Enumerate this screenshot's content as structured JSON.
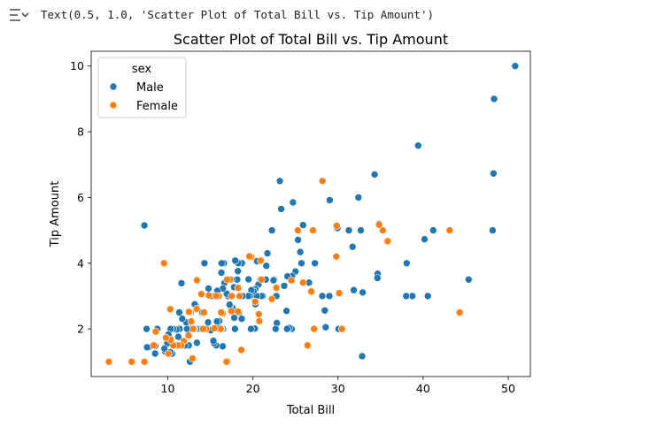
{
  "cell_output": {
    "text": "Text(0.5, 1.0, 'Scatter Plot of Total Bill vs. Tip Amount')",
    "icon": "output-collapse-icon"
  },
  "chart_data": {
    "type": "scatter",
    "title": "Scatter Plot of Total Bill vs. Tip Amount",
    "xlabel": "Total Bill",
    "ylabel": "Tip Amount",
    "xlim": [
      1.0,
      52.6
    ],
    "ylim": [
      0.55,
      10.45
    ],
    "xticks": [
      10,
      20,
      30,
      40,
      50
    ],
    "yticks": [
      2,
      4,
      6,
      8,
      10
    ],
    "grid": false,
    "legend": {
      "title": "sex",
      "position": "upper-left"
    },
    "series": [
      {
        "name": "Male",
        "color": "#1f77b4",
        "points": [
          [
            50.81,
            10.0
          ],
          [
            48.33,
            9.0
          ],
          [
            48.27,
            6.73
          ],
          [
            48.17,
            5.0
          ],
          [
            45.35,
            3.5
          ],
          [
            41.19,
            5.0
          ],
          [
            40.55,
            3.0
          ],
          [
            40.17,
            4.73
          ],
          [
            39.42,
            7.58
          ],
          [
            38.73,
            3.0
          ],
          [
            38.07,
            4.0
          ],
          [
            38.01,
            3.0
          ],
          [
            34.81,
            5.2
          ],
          [
            34.65,
            3.68
          ],
          [
            34.63,
            3.55
          ],
          [
            34.3,
            6.7
          ],
          [
            32.83,
            1.17
          ],
          [
            32.68,
            5.0
          ],
          [
            32.4,
            6.0
          ],
          [
            32.9,
            3.11
          ],
          [
            31.85,
            3.18
          ],
          [
            31.71,
            4.5
          ],
          [
            31.27,
            5.0
          ],
          [
            30.4,
            2.0
          ],
          [
            30.06,
            2.0
          ],
          [
            29.93,
            5.07
          ],
          [
            29.85,
            5.14
          ],
          [
            29.03,
            5.92
          ],
          [
            28.97,
            3.0
          ],
          [
            28.55,
            2.05
          ],
          [
            28.44,
            2.56
          ],
          [
            28.15,
            3.0
          ],
          [
            27.28,
            4.0
          ],
          [
            26.88,
            3.12
          ],
          [
            26.86,
            3.14
          ],
          [
            26.59,
            3.41
          ],
          [
            25.89,
            5.16
          ],
          [
            25.71,
            4.0
          ],
          [
            25.56,
            4.34
          ],
          [
            25.29,
            4.71
          ],
          [
            25.0,
            3.75
          ],
          [
            24.71,
            5.85
          ],
          [
            24.59,
            3.61
          ],
          [
            24.55,
            2.0
          ],
          [
            24.27,
            2.03
          ],
          [
            24.06,
            3.6
          ],
          [
            24.01,
            2.0
          ],
          [
            23.95,
            2.55
          ],
          [
            23.68,
            3.31
          ],
          [
            23.33,
            5.65
          ],
          [
            23.17,
            6.5
          ],
          [
            22.82,
            2.18
          ],
          [
            22.76,
            3.0
          ],
          [
            22.67,
            2.0
          ],
          [
            22.49,
            3.5
          ],
          [
            22.42,
            3.48
          ],
          [
            22.23,
            5.0
          ],
          [
            21.7,
            4.3
          ],
          [
            21.58,
            3.92
          ],
          [
            21.5,
            3.5
          ],
          [
            21.16,
            3.0
          ],
          [
            21.01,
            3.0
          ],
          [
            20.92,
            4.08
          ],
          [
            20.9,
            3.5
          ],
          [
            20.69,
            2.45
          ],
          [
            20.65,
            3.35
          ],
          [
            20.49,
            4.06
          ],
          [
            20.45,
            3.0
          ],
          [
            20.29,
            2.75
          ],
          [
            20.29,
            3.21
          ],
          [
            20.27,
            2.83
          ],
          [
            20.23,
            2.01
          ],
          [
            20.08,
            3.15
          ],
          [
            19.82,
            3.18
          ],
          [
            19.81,
            4.19
          ],
          [
            19.77,
            2.0
          ],
          [
            19.65,
            3.0
          ],
          [
            19.49,
            3.51
          ],
          [
            19.44,
            3.0
          ],
          [
            18.78,
            3.0
          ],
          [
            18.71,
            4.0
          ],
          [
            18.69,
            2.31
          ],
          [
            18.35,
            2.5
          ],
          [
            18.29,
            3.76
          ],
          [
            18.28,
            4.0
          ],
          [
            18.24,
            3.76
          ],
          [
            18.15,
            3.5
          ],
          [
            17.92,
            4.08
          ],
          [
            17.89,
            2.0
          ],
          [
            17.81,
            2.34
          ],
          [
            17.78,
            3.27
          ],
          [
            17.59,
            2.64
          ],
          [
            17.47,
            3.5
          ],
          [
            17.46,
            2.54
          ],
          [
            17.29,
            2.71
          ],
          [
            17.26,
            2.74
          ],
          [
            17.07,
            3.0
          ],
          [
            16.99,
            1.01
          ],
          [
            16.93,
            3.07
          ],
          [
            16.66,
            3.4
          ],
          [
            16.58,
            4.0
          ],
          [
            16.49,
            2.0
          ],
          [
            16.47,
            3.23
          ],
          [
            16.45,
            1.47
          ],
          [
            16.4,
            2.5
          ],
          [
            16.32,
            4.0
          ],
          [
            16.31,
            2.0
          ],
          [
            16.29,
            3.71
          ],
          [
            16.21,
            2.0
          ],
          [
            16.04,
            2.24
          ],
          [
            16.0,
            2.0
          ],
          [
            15.98,
            2.03
          ],
          [
            15.81,
            3.16
          ],
          [
            15.77,
            2.23
          ],
          [
            15.69,
            1.5
          ],
          [
            15.53,
            3.0
          ],
          [
            15.48,
            2.02
          ],
          [
            15.42,
            1.57
          ],
          [
            15.38,
            3.0
          ],
          [
            15.36,
            1.64
          ],
          [
            15.06,
            3.0
          ],
          [
            15.04,
            1.96
          ],
          [
            14.83,
            3.02
          ],
          [
            14.78,
            3.23
          ],
          [
            14.73,
            2.2
          ],
          [
            14.48,
            2.0
          ],
          [
            14.31,
            4.0
          ],
          [
            14.26,
            2.5
          ],
          [
            14.15,
            2.0
          ],
          [
            14.07,
            2.5
          ],
          [
            13.94,
            3.06
          ],
          [
            13.81,
            2.0
          ],
          [
            13.51,
            2.0
          ],
          [
            13.42,
            1.58
          ],
          [
            13.37,
            2.0
          ],
          [
            13.28,
            2.72
          ],
          [
            13.16,
            2.75
          ],
          [
            13.13,
            2.0
          ],
          [
            13.03,
            2.0
          ],
          [
            13.0,
            2.0
          ],
          [
            12.74,
            2.01
          ],
          [
            12.69,
            2.0
          ],
          [
            12.66,
            2.5
          ],
          [
            12.6,
            1.0
          ],
          [
            12.46,
            1.5
          ],
          [
            12.43,
            1.8
          ],
          [
            12.26,
            2.0
          ],
          [
            12.16,
            2.2
          ],
          [
            12.03,
            1.5
          ],
          [
            11.87,
            1.63
          ],
          [
            11.69,
            2.31
          ],
          [
            11.61,
            3.39
          ],
          [
            11.59,
            1.5
          ],
          [
            11.38,
            2.0
          ],
          [
            11.35,
            2.5
          ],
          [
            11.24,
            1.76
          ],
          [
            11.02,
            1.98
          ],
          [
            10.65,
            1.5
          ],
          [
            10.63,
            2.0
          ],
          [
            10.51,
            1.25
          ],
          [
            10.34,
            2.0
          ],
          [
            10.33,
            2.0
          ],
          [
            10.29,
            1.29
          ],
          [
            10.27,
            1.71
          ],
          [
            10.07,
            1.83
          ],
          [
            9.94,
            1.56
          ],
          [
            9.78,
            1.73
          ],
          [
            9.68,
            1.32
          ],
          [
            9.6,
            1.4
          ],
          [
            8.77,
            2.0
          ],
          [
            8.52,
            1.48
          ],
          [
            8.51,
            1.25
          ],
          [
            7.74,
            1.44
          ],
          [
            7.51,
            2.0
          ],
          [
            7.25,
            5.15
          ],
          [
            7.56,
            1.44
          ]
        ]
      },
      {
        "name": "Female",
        "color": "#ff7f0e",
        "points": [
          [
            44.3,
            2.5
          ],
          [
            43.11,
            5.0
          ],
          [
            35.83,
            4.67
          ],
          [
            35.26,
            5.0
          ],
          [
            34.83,
            5.17
          ],
          [
            30.46,
            2.0
          ],
          [
            30.14,
            3.09
          ],
          [
            29.85,
            5.14
          ],
          [
            29.8,
            4.2
          ],
          [
            28.17,
            6.5
          ],
          [
            27.18,
            2.0
          ],
          [
            27.05,
            5.0
          ],
          [
            26.41,
            1.5
          ],
          [
            26.86,
            3.14
          ],
          [
            25.89,
            3.41
          ],
          [
            25.28,
            5.0
          ],
          [
            24.52,
            3.48
          ],
          [
            22.75,
            3.25
          ],
          [
            22.23,
            2.91
          ],
          [
            21.01,
            3.5
          ],
          [
            20.92,
            4.08
          ],
          [
            20.76,
            2.24
          ],
          [
            20.69,
            2.45
          ],
          [
            19.81,
            4.19
          ],
          [
            19.59,
            4.21
          ],
          [
            18.64,
            1.36
          ],
          [
            18.43,
            3.0
          ],
          [
            18.26,
            3.25
          ],
          [
            17.51,
            3.0
          ],
          [
            17.31,
            3.5
          ],
          [
            16.97,
            3.5
          ],
          [
            16.9,
            1.0
          ],
          [
            16.4,
            2.5
          ],
          [
            16.45,
            2.47
          ],
          [
            16.27,
            2.5
          ],
          [
            16.21,
            2.0
          ],
          [
            15.98,
            3.0
          ],
          [
            15.69,
            3.0
          ],
          [
            15.48,
            2.02
          ],
          [
            14.83,
            3.02
          ],
          [
            14.52,
            2.0
          ],
          [
            14.26,
            2.5
          ],
          [
            14.15,
            2.0
          ],
          [
            13.94,
            3.06
          ],
          [
            13.42,
            3.48
          ],
          [
            13.39,
            2.61
          ],
          [
            13.0,
            2.0
          ],
          [
            12.9,
            1.1
          ],
          [
            12.76,
            2.23
          ],
          [
            12.54,
            2.5
          ],
          [
            12.48,
            2.52
          ],
          [
            12.43,
            1.8
          ],
          [
            11.87,
            1.63
          ],
          [
            11.59,
            1.5
          ],
          [
            11.17,
            1.5
          ],
          [
            10.65,
            1.5
          ],
          [
            10.33,
            1.67
          ],
          [
            10.29,
            2.6
          ],
          [
            10.07,
            1.25
          ],
          [
            9.55,
            4.0
          ],
          [
            9.78,
            1.73
          ],
          [
            8.58,
            1.92
          ],
          [
            8.35,
            1.5
          ],
          [
            7.25,
            1.0
          ],
          [
            5.75,
            1.0
          ],
          [
            3.07,
            1.0
          ],
          [
            18.25,
            2.53
          ],
          [
            17.47,
            2.54
          ],
          [
            20.27,
            2.83
          ],
          [
            26.41,
            1.5
          ]
        ]
      }
    ]
  }
}
